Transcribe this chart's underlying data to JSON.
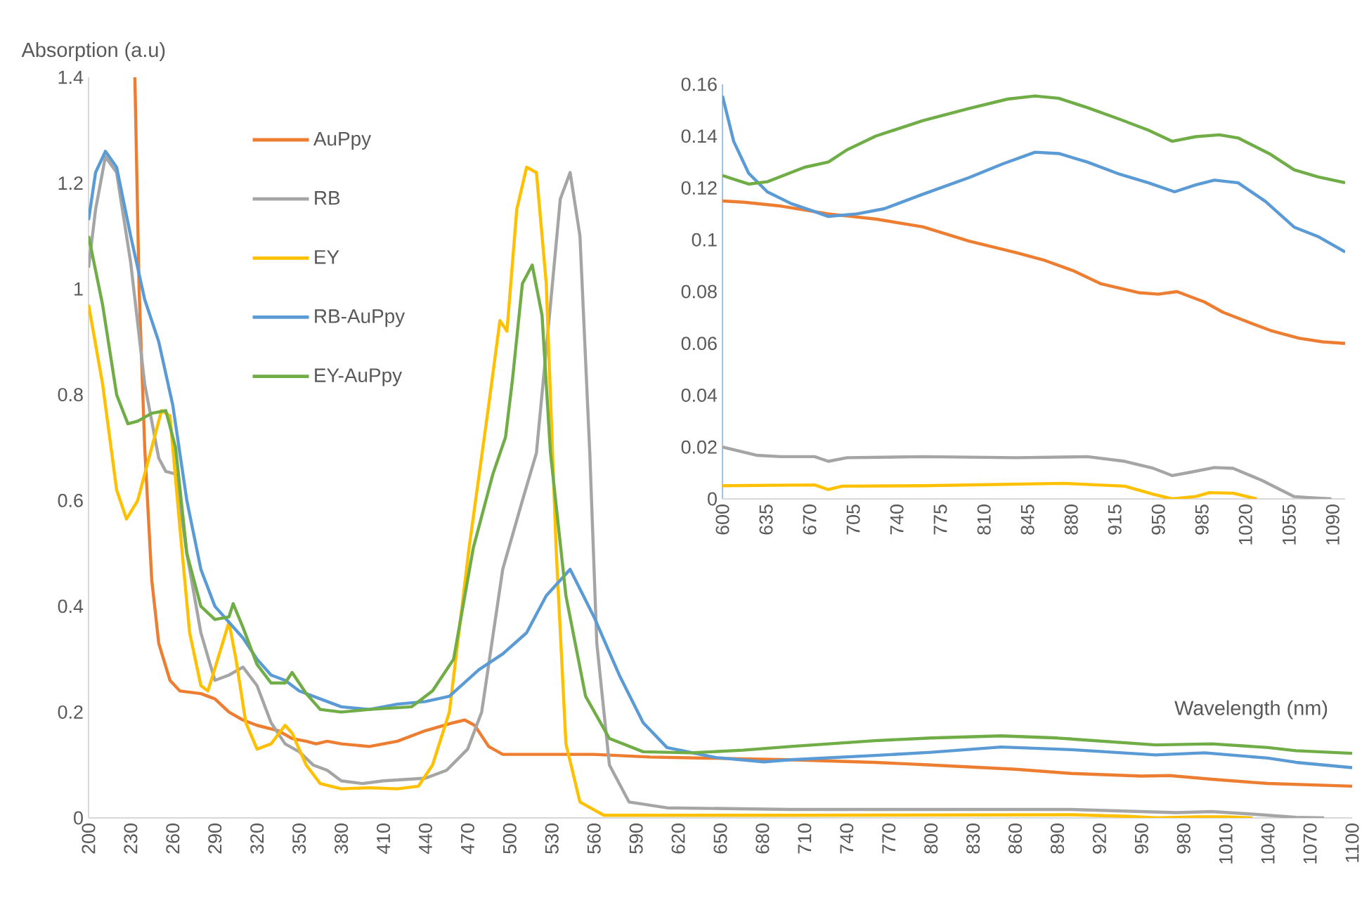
{
  "chart_data": [
    {
      "type": "line",
      "ylabel": "Absorption (a.u)",
      "xlabel": "Wavelength (nm)",
      "xlim": [
        200,
        1100
      ],
      "ylim": [
        0,
        1.4
      ],
      "xticks": [
        200,
        230,
        260,
        290,
        320,
        350,
        380,
        410,
        440,
        470,
        500,
        530,
        560,
        590,
        620,
        650,
        680,
        710,
        740,
        770,
        800,
        830,
        860,
        890,
        920,
        950,
        980,
        1010,
        1040,
        1070,
        1100
      ],
      "yticks": [
        0,
        0.2,
        0.4,
        0.6,
        0.8,
        1,
        1.2,
        1.4
      ],
      "legend": "top left",
      "line_style": "solid",
      "series": [
        {
          "name": "AuPpy",
          "color": "#ed7d31",
          "x": [
            233,
            236,
            240,
            245,
            250,
            258,
            265,
            280,
            290,
            300,
            310,
            320,
            335,
            345,
            355,
            362,
            370,
            380,
            400,
            420,
            440,
            460,
            468,
            475,
            485,
            495,
            520,
            560,
            600,
            640,
            700,
            760,
            800,
            860,
            900,
            950,
            970,
            1000,
            1040,
            1100
          ],
          "values": [
            1.4,
            1.0,
            0.7,
            0.45,
            0.33,
            0.26,
            0.24,
            0.235,
            0.225,
            0.2,
            0.185,
            0.175,
            0.165,
            0.15,
            0.145,
            0.14,
            0.145,
            0.14,
            0.135,
            0.145,
            0.165,
            0.18,
            0.185,
            0.175,
            0.135,
            0.12,
            0.12,
            0.12,
            0.115,
            0.113,
            0.11,
            0.105,
            0.1,
            0.092,
            0.084,
            0.079,
            0.08,
            0.073,
            0.065,
            0.06
          ]
        },
        {
          "name": "RB",
          "color": "#a5a5a5",
          "x": [
            200,
            205,
            212,
            220,
            230,
            240,
            250,
            255,
            262,
            270,
            280,
            290,
            300,
            310,
            320,
            330,
            340,
            350,
            360,
            370,
            380,
            395,
            410,
            440,
            455,
            470,
            480,
            495,
            509,
            519,
            529,
            536,
            543,
            550,
            557,
            562,
            571,
            585,
            612,
            700,
            800,
            900,
            950,
            975,
            1000,
            1030,
            1060,
            1080
          ],
          "values": [
            1.04,
            1.15,
            1.25,
            1.22,
            1.05,
            0.82,
            0.68,
            0.655,
            0.65,
            0.5,
            0.35,
            0.26,
            0.27,
            0.285,
            0.25,
            0.18,
            0.14,
            0.125,
            0.1,
            0.09,
            0.07,
            0.065,
            0.07,
            0.075,
            0.09,
            0.13,
            0.2,
            0.47,
            0.6,
            0.69,
            0.97,
            1.17,
            1.22,
            1.1,
            0.69,
            0.33,
            0.1,
            0.03,
            0.019,
            0.016,
            0.016,
            0.016,
            0.012,
            0.01,
            0.012,
            0.007,
            0.001,
            0
          ]
        },
        {
          "name": "EY",
          "color": "#ffc000",
          "x": [
            200,
            210,
            220,
            227,
            235,
            245,
            252,
            258,
            265,
            272,
            280,
            285,
            292,
            300,
            305,
            312,
            320,
            330,
            340,
            345,
            355,
            365,
            380,
            400,
            420,
            435,
            445,
            457,
            471,
            485,
            493,
            498,
            505,
            512,
            519,
            526,
            533,
            540,
            550,
            567,
            700,
            900,
            940,
            961,
            990,
            1010,
            1029
          ],
          "values": [
            0.97,
            0.82,
            0.62,
            0.565,
            0.6,
            0.7,
            0.77,
            0.76,
            0.55,
            0.35,
            0.25,
            0.24,
            0.3,
            0.37,
            0.3,
            0.18,
            0.13,
            0.14,
            0.175,
            0.16,
            0.1,
            0.065,
            0.055,
            0.057,
            0.055,
            0.06,
            0.1,
            0.2,
            0.51,
            0.78,
            0.94,
            0.92,
            1.15,
            1.23,
            1.22,
            1.01,
            0.51,
            0.14,
            0.03,
            0.005,
            0.005,
            0.006,
            0.003,
            0,
            0.002,
            0.002,
            0
          ]
        },
        {
          "name": "RB-AuPpy",
          "color": "#5b9bd5",
          "x": [
            200,
            205,
            212,
            220,
            230,
            240,
            250,
            260,
            270,
            280,
            290,
            300,
            310,
            320,
            330,
            340,
            350,
            365,
            380,
            400,
            420,
            440,
            457,
            478,
            495,
            512,
            526,
            543,
            560,
            578,
            595,
            612,
            647,
            681,
            700,
            760,
            800,
            850,
            900,
            960,
            995,
            1040,
            1060,
            1100
          ],
          "values": [
            1.13,
            1.22,
            1.26,
            1.23,
            1.1,
            0.98,
            0.9,
            0.78,
            0.6,
            0.47,
            0.4,
            0.37,
            0.34,
            0.3,
            0.27,
            0.26,
            0.24,
            0.225,
            0.21,
            0.205,
            0.215,
            0.22,
            0.23,
            0.28,
            0.31,
            0.35,
            0.42,
            0.47,
            0.38,
            0.27,
            0.18,
            0.133,
            0.114,
            0.106,
            0.11,
            0.118,
            0.124,
            0.134,
            0.129,
            0.119,
            0.123,
            0.113,
            0.105,
            0.095
          ]
        },
        {
          "name": "EY-AuPpy",
          "color": "#70ad47",
          "x": [
            200,
            210,
            220,
            228,
            235,
            245,
            255,
            262,
            270,
            280,
            290,
            300,
            303,
            310,
            320,
            330,
            340,
            345,
            355,
            365,
            380,
            400,
            430,
            445,
            460,
            474,
            488,
            497,
            502,
            509,
            516,
            523,
            529,
            540,
            554,
            571,
            595,
            629,
            666,
            700,
            760,
            800,
            850,
            890,
            960,
            1000,
            1040,
            1060,
            1100
          ],
          "values": [
            1.1,
            0.97,
            0.8,
            0.745,
            0.75,
            0.765,
            0.77,
            0.7,
            0.5,
            0.4,
            0.375,
            0.38,
            0.405,
            0.36,
            0.29,
            0.255,
            0.255,
            0.275,
            0.235,
            0.205,
            0.2,
            0.205,
            0.21,
            0.24,
            0.3,
            0.51,
            0.65,
            0.72,
            0.83,
            1.01,
            1.045,
            0.95,
            0.69,
            0.42,
            0.23,
            0.15,
            0.125,
            0.123,
            0.128,
            0.135,
            0.146,
            0.151,
            0.155,
            0.151,
            0.138,
            0.14,
            0.133,
            0.127,
            0.122
          ]
        }
      ]
    },
    {
      "type": "line",
      "xlim": [
        600,
        1100
      ],
      "ylim": [
        0,
        0.16
      ],
      "xticks": [
        600,
        635,
        670,
        705,
        740,
        775,
        810,
        845,
        880,
        915,
        950,
        985,
        1020,
        1055,
        1090
      ],
      "yticks": [
        0,
        0.02,
        0.04,
        0.06,
        0.08,
        0.1,
        0.12,
        0.14,
        0.16
      ],
      "line_style": "solid",
      "series": [
        {
          "color": "#ed7d31",
          "x": [
            600,
            617,
            647,
            685,
            723,
            761,
            798,
            836,
            859,
            882,
            904,
            934,
            950,
            965,
            987,
            1002,
            1018,
            1040,
            1063,
            1082,
            1100
          ],
          "values": [
            0.115,
            0.1145,
            0.113,
            0.11,
            0.108,
            0.105,
            0.0995,
            0.095,
            0.092,
            0.088,
            0.083,
            0.0796,
            0.079,
            0.08,
            0.076,
            0.072,
            0.069,
            0.065,
            0.062,
            0.0606,
            0.06
          ]
        },
        {
          "color": "#a5a5a5",
          "x": [
            600,
            628,
            647,
            674,
            685,
            700,
            761,
            836,
            893,
            923,
            946,
            961,
            976,
            995,
            1010,
            1033,
            1059,
            1071,
            1089
          ],
          "values": [
            0.02,
            0.0168,
            0.0163,
            0.0163,
            0.0145,
            0.0159,
            0.0163,
            0.0159,
            0.0163,
            0.0145,
            0.0118,
            0.009,
            0.0103,
            0.0121,
            0.0118,
            0.0072,
            0.0009,
            0.0005,
            0
          ]
        },
        {
          "color": "#ffc000",
          "x": [
            600,
            674,
            685,
            696,
            761,
            874,
            923,
            946,
            961,
            980,
            991,
            1010,
            1029
          ],
          "values": [
            0.0051,
            0.0054,
            0.0036,
            0.0049,
            0.0051,
            0.006,
            0.0049,
            0.0018,
            0,
            0.0009,
            0.0024,
            0.0022,
            0
          ]
        },
        {
          "color": "#5b9bd5",
          "x": [
            600,
            609,
            621,
            636,
            655,
            674,
            685,
            708,
            730,
            761,
            798,
            825,
            851,
            870,
            893,
            919,
            942,
            963,
            980,
            995,
            1014,
            1036,
            1059,
            1078,
            1100
          ],
          "values": [
            0.1555,
            0.138,
            0.1257,
            0.1185,
            0.114,
            0.1109,
            0.109,
            0.11,
            0.112,
            0.1176,
            0.124,
            0.1293,
            0.1338,
            0.1333,
            0.13,
            0.1253,
            0.122,
            0.1185,
            0.1212,
            0.123,
            0.122,
            0.1148,
            0.1049,
            0.1013,
            0.0953
          ]
        },
        {
          "color": "#70ad47",
          "x": [
            600,
            621,
            636,
            666,
            685,
            700,
            723,
            761,
            798,
            829,
            851,
            870,
            893,
            919,
            942,
            961,
            980,
            999,
            1014,
            1040,
            1059,
            1078,
            1100
          ],
          "values": [
            0.1248,
            0.1215,
            0.1224,
            0.128,
            0.13,
            0.1347,
            0.14,
            0.146,
            0.1507,
            0.1543,
            0.1555,
            0.1546,
            0.151,
            0.1465,
            0.1423,
            0.138,
            0.1398,
            0.1405,
            0.1393,
            0.133,
            0.127,
            0.1243,
            0.122
          ]
        }
      ]
    }
  ]
}
